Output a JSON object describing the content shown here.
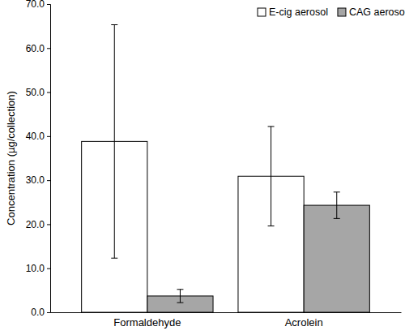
{
  "chart_data": {
    "type": "bar",
    "categories": [
      "Formaldehyde",
      "Acrolein"
    ],
    "series": [
      {
        "name": "E-cig aerosol",
        "color": "#ffffff",
        "values": [
          38.8,
          30.9
        ],
        "errors": [
          26.5,
          11.3
        ]
      },
      {
        "name": "CAG aerosol",
        "color": "#a6a6a6",
        "values": [
          3.7,
          24.3
        ],
        "errors": [
          1.5,
          3.0
        ]
      }
    ],
    "y_label": "Concentration (µg/collection)",
    "ylim": [
      0,
      70
    ],
    "yticks": [
      {
        "value": 0,
        "label": "0.0"
      },
      {
        "value": 10,
        "label": "10.0"
      },
      {
        "value": 20,
        "label": "20.0"
      },
      {
        "value": 30,
        "label": "30.0"
      },
      {
        "value": 40,
        "label": "40.0"
      },
      {
        "value": 50,
        "label": "50.0"
      },
      {
        "value": 60,
        "label": "60.0"
      },
      {
        "value": 70,
        "label": "70.0"
      }
    ],
    "legend": "upper right",
    "grid": false
  }
}
